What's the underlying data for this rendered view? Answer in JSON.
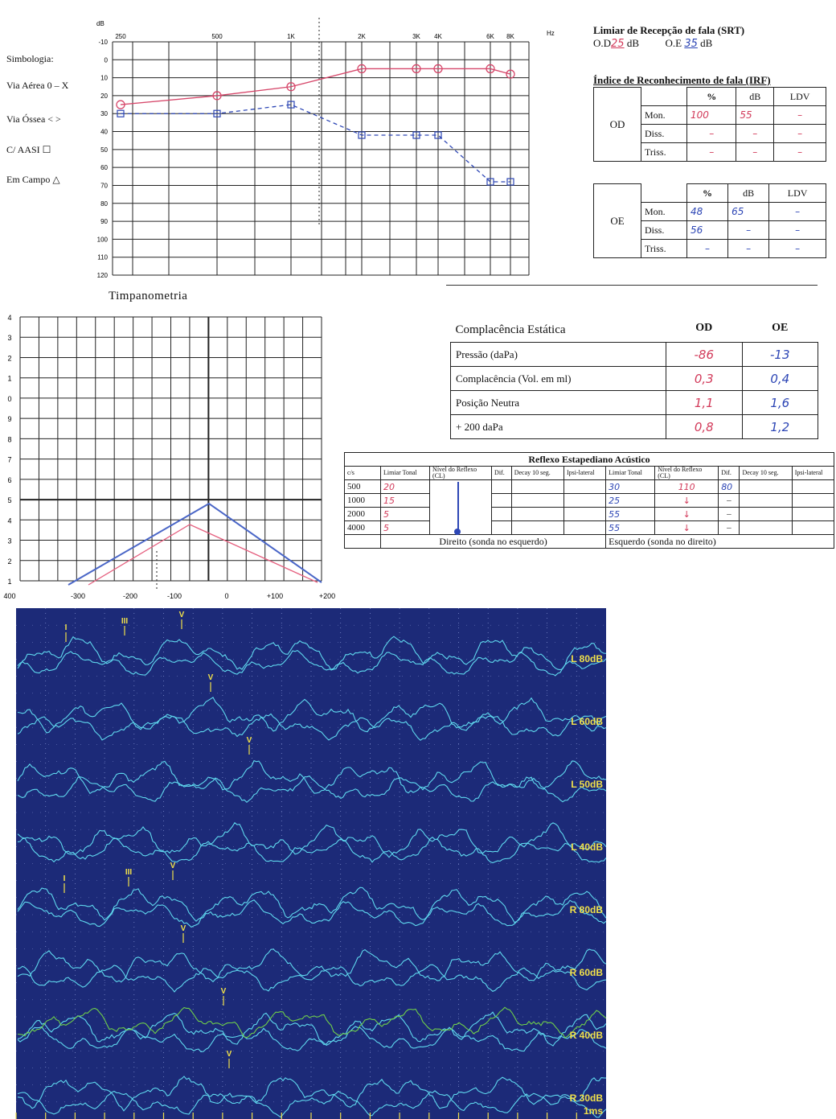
{
  "audiogram": {
    "db_unit": "dB",
    "hz_unit": "Hz",
    "freq_labels": [
      "250",
      "500",
      "1K",
      "2K",
      "3K",
      "4K",
      "6K",
      "8K"
    ],
    "db_labels": [
      "-10",
      "0",
      "10",
      "20",
      "30",
      "40",
      "50",
      "60",
      "70",
      "80",
      "90",
      "100",
      "110",
      "120"
    ],
    "right_air_db": [
      25,
      20,
      15,
      5,
      5,
      5,
      5,
      8
    ],
    "left_bone_db": [
      30,
      30,
      25,
      42,
      42,
      42,
      68,
      68
    ]
  },
  "legend": {
    "title": "Simbologia:",
    "air": "Via Aérea 0 – X",
    "bone": "Via Óssea < >",
    "aasi": "C/ AASI ☐",
    "field": "Em Campo △"
  },
  "srt": {
    "title": "Limiar de Recepção de fala (SRT)",
    "od_label": "O.D",
    "od_value": "25",
    "oe_label": "O.E",
    "oe_value": "35",
    "unit": "dB"
  },
  "irf": {
    "title": "Índice de Reconhecimento de fala (IRF)",
    "col_pct": "%",
    "col_db": "dB",
    "col_ldv": "LDV",
    "od": {
      "ear": "OD",
      "rows": [
        [
          "Mon.",
          "100",
          "55",
          "–"
        ],
        [
          "Diss.",
          "–",
          "–",
          "–"
        ],
        [
          "Triss.",
          "–",
          "–",
          "–"
        ]
      ]
    },
    "oe": {
      "ear": "OE",
      "rows": [
        [
          "Mon.",
          "48",
          "65",
          "–"
        ],
        [
          "Diss.",
          "56",
          "–",
          "–"
        ],
        [
          "Triss.",
          "–",
          "–",
          "–"
        ]
      ]
    }
  },
  "tymp": {
    "title": "Timpanometria",
    "y_labels": [
      "4",
      "3",
      "2",
      "1",
      "0",
      "9",
      "8",
      "7",
      "6",
      "5",
      "4",
      "3",
      "2",
      "1"
    ],
    "x_labels": [
      "400",
      "-300",
      "-200",
      "-100",
      "0",
      "+100",
      "+200"
    ]
  },
  "compliance": {
    "title": "Complacência Estática",
    "col_od": "OD",
    "col_oe": "OE",
    "rows": [
      {
        "label": "Pressão (daPa)",
        "od": "-86",
        "oe": "-13"
      },
      {
        "label": "Complacência (Vol. em ml)",
        "od": "0,3",
        "oe": "0,4"
      },
      {
        "label": "Posição Neutra",
        "od": "1,1",
        "oe": "1,6"
      },
      {
        "label": "+ 200 daPa",
        "od": "0,8",
        "oe": "1,2"
      }
    ]
  },
  "reflex": {
    "title": "Reflexo Estapediano Acústico",
    "cs": "c/s",
    "limiar": "Limiar Tonal",
    "nivel": "Nível do Reflexo (CL)",
    "dif": "Dif.",
    "decay": "Decay 10 seg.",
    "ipsi": "Ipsi-lateral",
    "freqs": [
      "500",
      "1000",
      "2000",
      "4000"
    ],
    "right_limiar": [
      "20",
      "15",
      "5",
      "5"
    ],
    "left_limiar": [
      "30",
      "25",
      "55",
      "55"
    ],
    "left_nivel": [
      "110"
    ],
    "left_dif": [
      "80",
      "–",
      "–",
      "–"
    ],
    "footer_right": "Direito (sonda no esquerdo)",
    "footer_left": "Esquerdo (sonda no direito)"
  },
  "abr": {
    "bg": "#1c2a78",
    "trace_color": "#5fd8ee",
    "marker_color": "#f0e04a",
    "green_color": "#6fcf4a",
    "scale_label": "1ms",
    "rows": [
      {
        "label": "L 80dB",
        "marks": [
          "I",
          "III",
          "V"
        ]
      },
      {
        "label": "L 60dB",
        "marks": [
          "V"
        ]
      },
      {
        "label": "L 50dB",
        "marks": [
          "V"
        ]
      },
      {
        "label": "L 40dB",
        "marks": []
      },
      {
        "label": "R 80dB",
        "marks": [
          "I",
          "III",
          "V"
        ]
      },
      {
        "label": "R 60dB",
        "marks": [
          "V"
        ]
      },
      {
        "label": "R 40dB",
        "marks": [
          "V"
        ]
      },
      {
        "label": "R 30dB",
        "marks": [
          "V"
        ]
      }
    ]
  }
}
